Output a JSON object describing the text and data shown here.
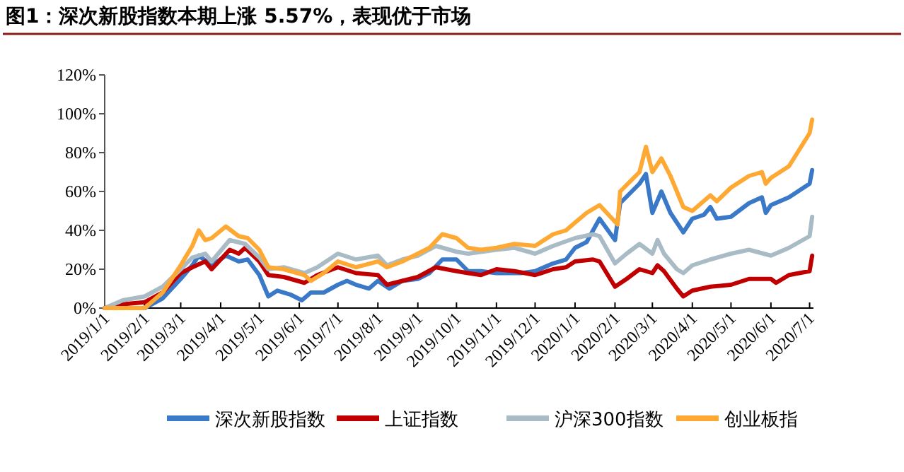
{
  "chart_data": {
    "type": "line",
    "title": "图1：深次新股指数本期上涨 5.57%，表现优于市场",
    "xlim": [
      "2019-01-01",
      "2020-07-04"
    ],
    "xticks": [
      {
        "value": "2019-01-01",
        "label": "2019/1/1"
      },
      {
        "value": "2019-02-01",
        "label": "2019/2/1"
      },
      {
        "value": "2019-03-01",
        "label": "2019/3/1"
      },
      {
        "value": "2019-04-01",
        "label": "2019/4/1"
      },
      {
        "value": "2019-05-01",
        "label": "2019/5/1"
      },
      {
        "value": "2019-06-01",
        "label": "2019/6/1"
      },
      {
        "value": "2019-07-01",
        "label": "2019/7/1"
      },
      {
        "value": "2019-08-01",
        "label": "2019/8/1"
      },
      {
        "value": "2019-09-01",
        "label": "2019/9/1"
      },
      {
        "value": "2019-10-01",
        "label": "2019/10/1"
      },
      {
        "value": "2019-11-01",
        "label": "2019/11/1"
      },
      {
        "value": "2019-12-01",
        "label": "2019/12/1"
      },
      {
        "value": "2020-01-01",
        "label": "2020/1/1"
      },
      {
        "value": "2020-02-01",
        "label": "2020/2/1"
      },
      {
        "value": "2020-03-01",
        "label": "2020/3/1"
      },
      {
        "value": "2020-04-01",
        "label": "2020/4/1"
      },
      {
        "value": "2020-05-01",
        "label": "2020/5/1"
      },
      {
        "value": "2020-06-01",
        "label": "2020/6/1"
      },
      {
        "value": "2020-07-01",
        "label": "2020/7/1"
      }
    ],
    "ylim": [
      0,
      120
    ],
    "yticks": [
      {
        "value": 0,
        "label": "0%"
      },
      {
        "value": 20,
        "label": "20%"
      },
      {
        "value": 40,
        "label": "40%"
      },
      {
        "value": 60,
        "label": "60%"
      },
      {
        "value": 80,
        "label": "80%"
      },
      {
        "value": 100,
        "label": "100%"
      },
      {
        "value": 120,
        "label": "120%"
      }
    ],
    "grid": false,
    "legend": "bottom",
    "line_style": "solid",
    "series": [
      {
        "name": "深次新股指数",
        "color": "#3a78c8",
        "x": [
          "2019-01-01",
          "2019-01-15",
          "2019-02-01",
          "2019-02-15",
          "2019-03-01",
          "2019-03-10",
          "2019-03-15",
          "2019-03-25",
          "2019-04-05",
          "2019-04-15",
          "2019-04-22",
          "2019-05-01",
          "2019-05-08",
          "2019-05-15",
          "2019-05-25",
          "2019-06-03",
          "2019-06-10",
          "2019-06-20",
          "2019-07-01",
          "2019-07-08",
          "2019-07-15",
          "2019-07-25",
          "2019-08-01",
          "2019-08-10",
          "2019-08-20",
          "2019-09-01",
          "2019-09-10",
          "2019-09-20",
          "2019-10-01",
          "2019-10-10",
          "2019-10-20",
          "2019-11-01",
          "2019-11-10",
          "2019-11-20",
          "2019-12-01",
          "2019-12-15",
          "2019-12-25",
          "2020-01-01",
          "2020-01-10",
          "2020-01-20",
          "2020-02-01",
          "2020-02-05",
          "2020-02-20",
          "2020-02-25",
          "2020-03-01",
          "2020-03-08",
          "2020-03-15",
          "2020-03-25",
          "2020-04-01",
          "2020-04-10",
          "2020-04-15",
          "2020-04-20",
          "2020-05-01",
          "2020-05-15",
          "2020-05-25",
          "2020-05-28",
          "2020-06-01",
          "2020-06-15",
          "2020-07-01",
          "2020-07-03"
        ],
        "values": [
          0,
          0,
          0,
          5,
          15,
          22,
          27,
          22,
          27,
          24,
          25,
          17,
          6,
          9,
          7,
          4,
          8,
          8,
          12,
          14,
          12,
          10,
          14,
          10,
          14,
          15,
          18,
          25,
          25,
          19,
          19,
          18,
          18,
          18,
          19,
          23,
          25,
          31,
          34,
          46,
          35,
          54,
          64,
          69,
          49,
          60,
          49,
          39,
          46,
          48,
          52,
          46,
          47,
          54,
          57,
          49,
          53,
          57,
          64,
          71
        ]
      },
      {
        "name": "上证指数",
        "color": "#c00000",
        "x": [
          "2019-01-01",
          "2019-01-15",
          "2019-02-01",
          "2019-02-15",
          "2019-03-01",
          "2019-03-10",
          "2019-03-20",
          "2019-03-25",
          "2019-04-08",
          "2019-04-15",
          "2019-04-20",
          "2019-05-01",
          "2019-05-08",
          "2019-05-20",
          "2019-06-05",
          "2019-06-15",
          "2019-07-01",
          "2019-07-15",
          "2019-08-01",
          "2019-08-08",
          "2019-08-20",
          "2019-09-01",
          "2019-09-15",
          "2019-10-01",
          "2019-10-10",
          "2019-10-20",
          "2019-11-01",
          "2019-11-15",
          "2019-12-01",
          "2019-12-15",
          "2019-12-25",
          "2020-01-01",
          "2020-01-15",
          "2020-01-20",
          "2020-02-01",
          "2020-02-10",
          "2020-02-20",
          "2020-03-01",
          "2020-03-05",
          "2020-03-10",
          "2020-03-20",
          "2020-03-25",
          "2020-04-01",
          "2020-04-15",
          "2020-05-01",
          "2020-05-15",
          "2020-06-01",
          "2020-06-05",
          "2020-06-15",
          "2020-07-01",
          "2020-07-03"
        ],
        "values": [
          0,
          2,
          3,
          8,
          18,
          21,
          24,
          20,
          30,
          28,
          31,
          24,
          17,
          16,
          13,
          17,
          21,
          18,
          17,
          12,
          14,
          16,
          21,
          19,
          18,
          17,
          20,
          19,
          17,
          20,
          21,
          24,
          25,
          24,
          11,
          15,
          20,
          18,
          22,
          19,
          10,
          6,
          9,
          11,
          12,
          15,
          15,
          13,
          17,
          19,
          27
        ]
      },
      {
        "name": "沪深300指数",
        "color": "#a9bcc6",
        "x": [
          "2019-01-01",
          "2019-01-15",
          "2019-02-01",
          "2019-02-15",
          "2019-03-01",
          "2019-03-10",
          "2019-03-20",
          "2019-03-25",
          "2019-04-08",
          "2019-04-20",
          "2019-05-01",
          "2019-05-08",
          "2019-05-20",
          "2019-06-05",
          "2019-06-15",
          "2019-07-01",
          "2019-07-15",
          "2019-08-01",
          "2019-08-08",
          "2019-08-20",
          "2019-09-01",
          "2019-09-15",
          "2019-10-01",
          "2019-10-10",
          "2019-11-01",
          "2019-11-15",
          "2019-12-01",
          "2019-12-15",
          "2020-01-01",
          "2020-01-15",
          "2020-01-20",
          "2020-02-01",
          "2020-02-10",
          "2020-02-20",
          "2020-03-01",
          "2020-03-05",
          "2020-03-10",
          "2020-03-20",
          "2020-03-25",
          "2020-04-01",
          "2020-04-15",
          "2020-05-01",
          "2020-05-15",
          "2020-06-01",
          "2020-06-15",
          "2020-07-01",
          "2020-07-03"
        ],
        "values": [
          0,
          4,
          6,
          11,
          20,
          26,
          28,
          24,
          35,
          33,
          26,
          20,
          21,
          18,
          21,
          28,
          25,
          27,
          22,
          25,
          27,
          32,
          29,
          28,
          30,
          31,
          28,
          32,
          36,
          38,
          37,
          23,
          28,
          33,
          28,
          35,
          28,
          20,
          18,
          22,
          25,
          28,
          30,
          27,
          31,
          37,
          47
        ]
      },
      {
        "name": "创业板指",
        "color": "#ffa935",
        "x": [
          "2019-01-01",
          "2019-01-15",
          "2019-02-01",
          "2019-02-15",
          "2019-03-01",
          "2019-03-10",
          "2019-03-15",
          "2019-03-20",
          "2019-03-25",
          "2019-04-05",
          "2019-04-15",
          "2019-04-22",
          "2019-05-01",
          "2019-05-08",
          "2019-05-20",
          "2019-06-05",
          "2019-06-10",
          "2019-06-20",
          "2019-07-01",
          "2019-07-15",
          "2019-08-01",
          "2019-08-08",
          "2019-08-20",
          "2019-09-01",
          "2019-09-10",
          "2019-09-20",
          "2019-10-01",
          "2019-10-10",
          "2019-10-20",
          "2019-11-01",
          "2019-11-15",
          "2019-12-01",
          "2019-12-15",
          "2019-12-25",
          "2020-01-01",
          "2020-01-10",
          "2020-01-20",
          "2020-02-03",
          "2020-02-05",
          "2020-02-20",
          "2020-02-25",
          "2020-03-01",
          "2020-03-08",
          "2020-03-15",
          "2020-03-25",
          "2020-04-01",
          "2020-04-15",
          "2020-04-20",
          "2020-05-01",
          "2020-05-15",
          "2020-05-25",
          "2020-05-28",
          "2020-06-01",
          "2020-06-15",
          "2020-07-01",
          "2020-07-03"
        ],
        "values": [
          0,
          0,
          0,
          8,
          22,
          32,
          40,
          35,
          36,
          42,
          37,
          36,
          30,
          21,
          20,
          17,
          14,
          18,
          24,
          21,
          24,
          21,
          24,
          28,
          31,
          38,
          36,
          31,
          30,
          31,
          33,
          32,
          38,
          40,
          44,
          49,
          53,
          43,
          60,
          70,
          83,
          70,
          77,
          68,
          52,
          50,
          58,
          55,
          62,
          68,
          70,
          64,
          67,
          73,
          90,
          97
        ]
      }
    ]
  }
}
